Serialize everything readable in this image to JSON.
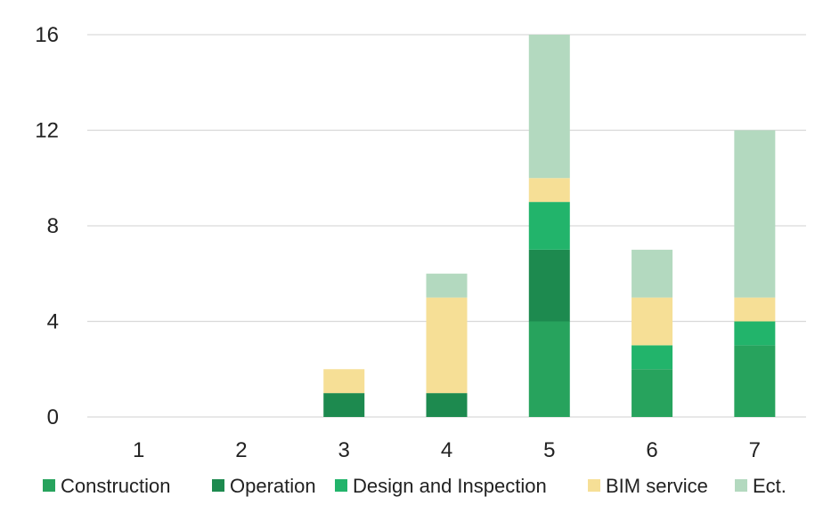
{
  "chart_data": {
    "type": "bar",
    "stacked": true,
    "title": "",
    "xlabel": "",
    "ylabel": "",
    "categories": [
      "1",
      "2",
      "3",
      "4",
      "5",
      "6",
      "7"
    ],
    "ylim": [
      0,
      16
    ],
    "yticks": [
      0,
      4,
      8,
      12,
      16
    ],
    "grid": true,
    "legend_position": "bottom",
    "series": [
      {
        "name": "Construction",
        "color": "#27a35d",
        "values": [
          0,
          0,
          0,
          0,
          4,
          2,
          3
        ]
      },
      {
        "name": "Operation",
        "color": "#1d8a4f",
        "values": [
          0,
          0,
          1,
          1,
          3,
          0,
          0
        ]
      },
      {
        "name": "Design and Inspection",
        "color": "#22b46b",
        "values": [
          0,
          0,
          0,
          0,
          2,
          1,
          1
        ]
      },
      {
        "name": "BIM service",
        "color": "#f6df96",
        "values": [
          0,
          0,
          1,
          4,
          1,
          2,
          1
        ]
      },
      {
        "name": "Ect.",
        "color": "#b3d9bf",
        "values": [
          0,
          0,
          0,
          1,
          6,
          2,
          7
        ]
      }
    ]
  }
}
